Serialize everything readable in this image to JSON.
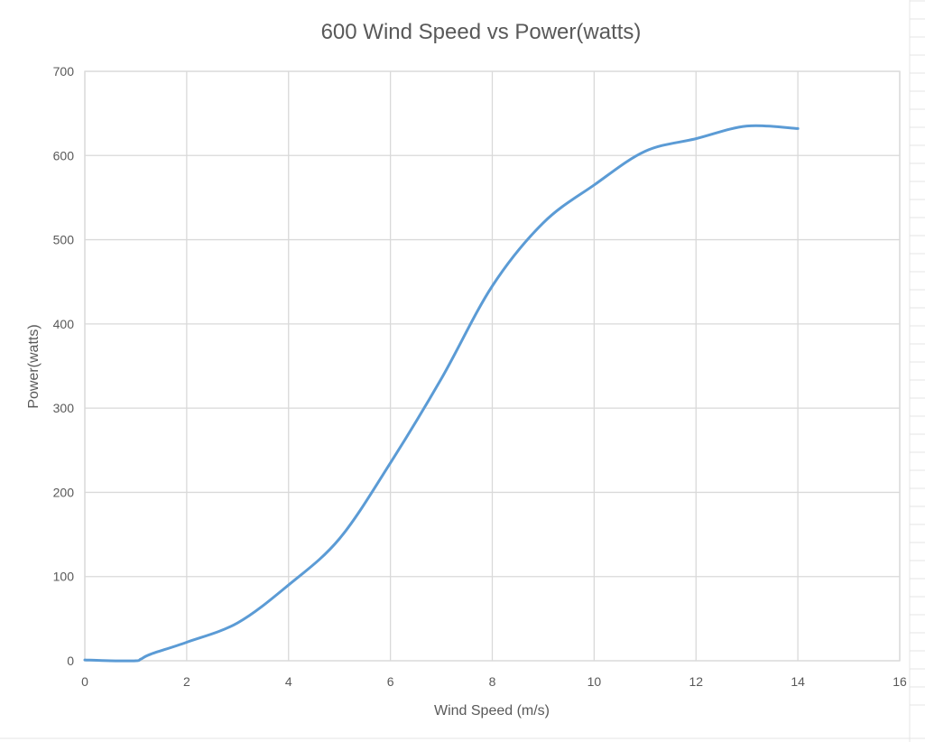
{
  "chart_data": {
    "type": "line",
    "title": "600 Wind Speed vs Power(watts)",
    "xlabel": "Wind Speed (m/s)",
    "ylabel": "Power(watts)",
    "xlim": [
      0,
      16
    ],
    "ylim": [
      0,
      700
    ],
    "x_ticks": [
      "0",
      "2",
      "4",
      "6",
      "8",
      "10",
      "12",
      "14",
      "16"
    ],
    "y_ticks": [
      "0",
      "100",
      "200",
      "300",
      "400",
      "500",
      "600",
      "700"
    ],
    "x_tick_values": [
      0,
      2,
      4,
      6,
      8,
      10,
      12,
      14,
      16
    ],
    "y_tick_values": [
      0,
      100,
      200,
      300,
      400,
      500,
      600,
      700
    ],
    "grid": true,
    "series": [
      {
        "color": "#5b9bd5",
        "x": [
          0,
          0.5,
          1.0,
          1.1,
          1.3,
          2,
          3,
          4,
          5,
          6,
          7,
          8,
          9,
          10,
          11,
          12,
          13,
          14
        ],
        "y": [
          1,
          0,
          0,
          2,
          8,
          22,
          45,
          90,
          145,
          235,
          335,
          445,
          520,
          565,
          605,
          620,
          635,
          632
        ]
      }
    ]
  }
}
